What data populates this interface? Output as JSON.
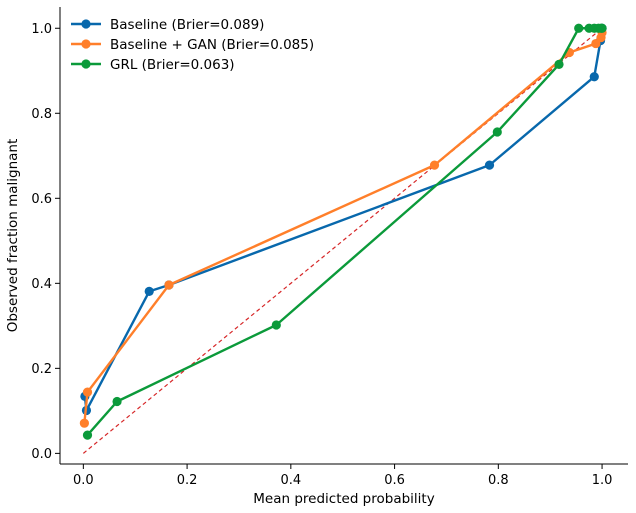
{
  "chart_data": {
    "type": "line",
    "xlabel": "Mean predicted probability",
    "ylabel": "Observed fraction malignant",
    "xlim": [
      -0.045,
      1.05
    ],
    "ylim": [
      -0.025,
      1.05
    ],
    "xticks": [
      0.0,
      0.2,
      0.4,
      0.6,
      0.8,
      1.0
    ],
    "yticks": [
      0.0,
      0.2,
      0.4,
      0.6,
      0.8,
      1.0
    ],
    "xtick_labels": [
      "0.0",
      "0.2",
      "0.4",
      "0.6",
      "0.8",
      "1.0"
    ],
    "ytick_labels": [
      "0.0",
      "0.2",
      "0.4",
      "0.6",
      "0.8",
      "1.0"
    ],
    "grid": false,
    "legend_position": "top-left",
    "reference_line": {
      "x": [
        0,
        1
      ],
      "y": [
        0,
        1
      ],
      "color": "#d62728",
      "style": "dashed"
    },
    "series": [
      {
        "name": "Baseline (Brier=0.089)",
        "color": "#0868ac",
        "x": [
          0.003,
          0.006,
          0.127,
          0.165,
          0.783,
          0.985,
          0.997,
          1.0
        ],
        "y": [
          0.134,
          0.101,
          0.381,
          0.396,
          0.678,
          0.886,
          0.971,
          1.0
        ]
      },
      {
        "name": "Baseline + GAN (Brier=0.085)",
        "color": "#ff7f2a",
        "x": [
          0.002,
          0.008,
          0.165,
          0.677,
          0.937,
          0.988,
          0.998,
          1.0
        ],
        "y": [
          0.071,
          0.144,
          0.396,
          0.678,
          0.943,
          0.964,
          0.978,
          0.99
        ]
      },
      {
        "name": "GRL (Brier=0.063)",
        "color": "#0b9a3a",
        "x": [
          0.008,
          0.065,
          0.372,
          0.798,
          0.917,
          0.955,
          0.975,
          0.985,
          0.993,
          0.998,
          1.0
        ],
        "y": [
          0.043,
          0.122,
          0.302,
          0.756,
          0.915,
          1.0,
          1.0,
          1.0,
          1.0,
          1.0,
          1.0
        ]
      }
    ]
  }
}
